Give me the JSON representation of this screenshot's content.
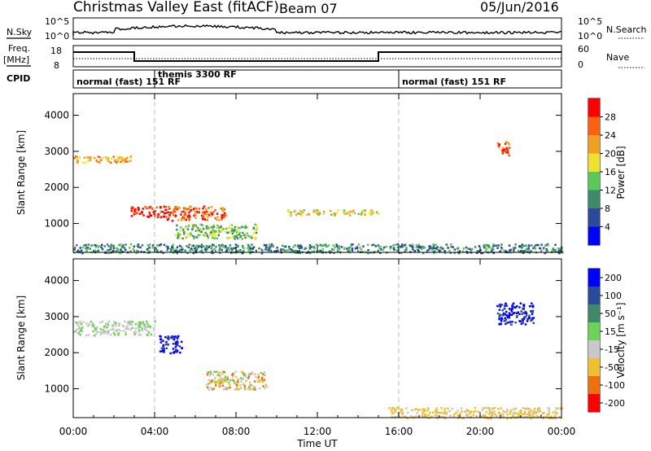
{
  "header": {
    "title": "Christmas Valley East (fitACF)",
    "beam": "Beam 07",
    "date": "05/Jun/2016"
  },
  "strip_panels": {
    "nsky": {
      "label": "N.Sky",
      "ticks": [
        "10^5",
        "10^0"
      ],
      "right_label": "N.Search",
      "right_ticks": [
        "10^5",
        "10^0"
      ]
    },
    "freq": {
      "label_line1": "Freq.",
      "label_line2": "[MHz]",
      "ticks": [
        "18",
        "8"
      ],
      "right_label": "Nave",
      "right_ticks": [
        "60",
        "0"
      ]
    },
    "cpid": {
      "label": "CPID",
      "modes": [
        "normal (fast) 151 RF",
        "themis 3300 RF",
        "normal (fast) 151 RF"
      ]
    }
  },
  "chart_data": [
    {
      "type": "heatmap",
      "panel": "power",
      "ylabel": "Slant Range [km]",
      "yticks": [
        "1000",
        "2000",
        "3000",
        "4000"
      ],
      "ylim": [
        200,
        4600
      ],
      "xlabel": "Time UT",
      "xticks": [
        "00:00",
        "04:00",
        "08:00",
        "12:00",
        "16:00",
        "20:00",
        "00:00"
      ],
      "xlim_hours": [
        0,
        24
      ],
      "colorbar_label": "Power [dB]",
      "colorbar_ticks": [
        "4",
        "8",
        "12",
        "16",
        "20",
        "24",
        "28"
      ],
      "colorbar_colors": [
        "#0000ff",
        "#2c4a9a",
        "#3c8a6a",
        "#5cc85a",
        "#f0e030",
        "#f0a020",
        "#ff6010",
        "#ff0000"
      ],
      "features": [
        {
          "t": [
            0.0,
            2.8
          ],
          "range_km": [
            2700,
            2900
          ],
          "level": 5
        },
        {
          "t": [
            2.8,
            4.5
          ],
          "range_km": [
            1200,
            1500
          ],
          "level": 7
        },
        {
          "t": [
            4.5,
            7.5
          ],
          "range_km": [
            1100,
            1500
          ],
          "level": 6
        },
        {
          "t": [
            5.0,
            9.0
          ],
          "range_km": [
            600,
            1000
          ],
          "level": 3
        },
        {
          "t": [
            10.5,
            15.0
          ],
          "range_km": [
            1250,
            1400
          ],
          "level": 4
        },
        {
          "t": [
            20.8,
            21.4
          ],
          "range_km": [
            2900,
            3300
          ],
          "level": 6
        },
        {
          "t": [
            0.0,
            24.0
          ],
          "range_km": [
            200,
            450
          ],
          "level": 2
        }
      ]
    },
    {
      "type": "heatmap",
      "panel": "velocity",
      "ylabel": "Slant Range [km]",
      "yticks": [
        "1000",
        "2000",
        "3000",
        "4000"
      ],
      "ylim": [
        200,
        4600
      ],
      "xlabel": "Time UT",
      "xticks": [
        "00:00",
        "04:00",
        "08:00",
        "12:00",
        "16:00",
        "20:00",
        "00:00"
      ],
      "xlim_hours": [
        0,
        24
      ],
      "colorbar_label": "Velocity [m s⁻¹]",
      "colorbar_ticks": [
        "200",
        "100",
        "50",
        "15",
        "-15",
        "-50",
        "-100",
        "-200"
      ],
      "colorbar_colors": [
        "#0000ff",
        "#2c4a9a",
        "#3c8a6a",
        "#6cd25a",
        "#c8c8c8",
        "#f0c030",
        "#f07010",
        "#ff0000"
      ],
      "features": [
        {
          "t": [
            0.0,
            4.0
          ],
          "range_km": [
            2500,
            2900
          ],
          "class": "ground"
        },
        {
          "t": [
            4.2,
            5.3
          ],
          "range_km": [
            2000,
            2500
          ],
          "class": "toward"
        },
        {
          "t": [
            6.5,
            9.5
          ],
          "range_km": [
            1000,
            1500
          ],
          "class": "away"
        },
        {
          "t": [
            20.8,
            22.6
          ],
          "range_km": [
            2800,
            3400
          ],
          "class": "toward"
        },
        {
          "t": [
            15.5,
            24.0
          ],
          "range_km": [
            200,
            500
          ],
          "class": "away-weak"
        }
      ]
    }
  ]
}
